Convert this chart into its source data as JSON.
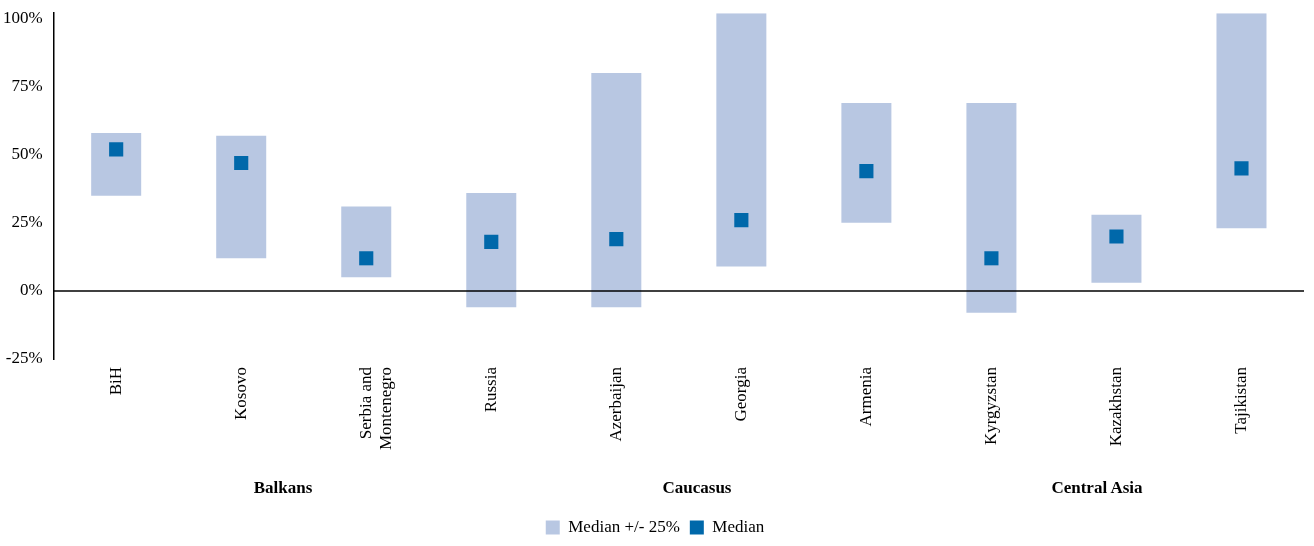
{
  "chart_data": {
    "type": "bar",
    "categories": [
      "BiH",
      "Kosovo",
      "Serbia and Montenegro",
      "Russia",
      "Azerbaijan",
      "Georgia",
      "Armenia",
      "Kyrgyzstan",
      "Kazakhstan",
      "Tajikistan"
    ],
    "series": [
      {
        "name": "Median +/- 25%",
        "color": "#b8c7e2",
        "base": [
          35,
          12,
          5,
          -6,
          -6,
          9,
          25,
          -8,
          3,
          23
        ],
        "values": [
          23,
          45,
          26,
          42,
          86,
          93,
          44,
          77,
          25,
          79
        ]
      },
      {
        "name": "Median",
        "type": "scatter",
        "color": "#0068aa",
        "values": [
          52,
          47,
          12,
          18,
          19,
          26,
          44,
          12,
          20,
          45
        ]
      }
    ],
    "ylim": [
      -25,
      102
    ],
    "yticks": [
      {
        "value": -25,
        "label": "-25%"
      },
      {
        "value": 0,
        "label": "0%"
      },
      {
        "value": 25,
        "label": "25%"
      },
      {
        "value": 50,
        "label": "50%"
      },
      {
        "value": 75,
        "label": "75%"
      },
      {
        "value": 100,
        "label": "100%"
      }
    ],
    "ref_lines": [
      {
        "axis": "y",
        "value": 0,
        "color": "#000000"
      }
    ],
    "annotations": [
      "Balkans",
      "Caucasus",
      "Central Asia"
    ],
    "grid": false,
    "marker": "square",
    "legend": "bottom"
  }
}
